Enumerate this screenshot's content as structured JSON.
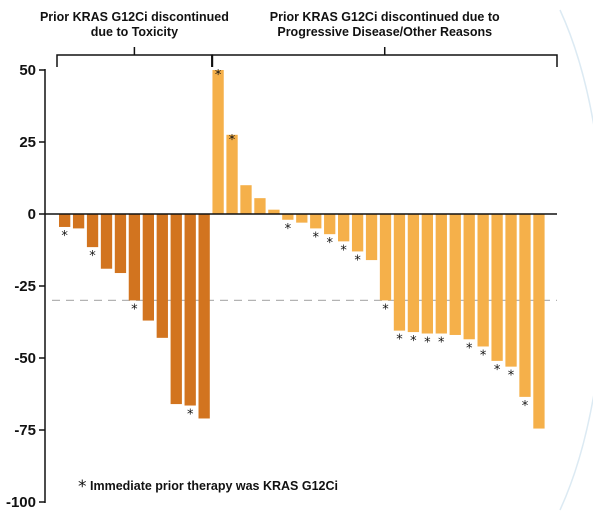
{
  "chart_data": {
    "type": "bar",
    "title": "",
    "xlabel": "",
    "ylabel": "",
    "ylim": [
      -100,
      50
    ],
    "yticks": [
      50,
      25,
      0,
      -25,
      -50,
      -75,
      -100
    ],
    "reference_line": -30,
    "groups": [
      {
        "label_lines": [
          "Prior KRAS G12Ci discontinued",
          "due to Toxicity"
        ],
        "color": "#D2741F"
      },
      {
        "label_lines": [
          "Prior KRAS G12Ci discontinued due to",
          "Progressive Disease/Other Reasons"
        ],
        "color": "#F5B04A"
      }
    ],
    "series": [
      {
        "group": 0,
        "values": [
          -4.5,
          -5,
          -11.5,
          -19,
          -20.5,
          -30,
          -37,
          -43,
          -66,
          -66.5,
          -71
        ],
        "starred": [
          true,
          false,
          true,
          false,
          false,
          true,
          false,
          false,
          false,
          true,
          false
        ]
      },
      {
        "group": 1,
        "values": [
          50,
          27.5,
          10,
          5.5,
          1.5,
          -2,
          -3,
          -5,
          -7,
          -9.5,
          -13,
          -16,
          -30,
          -40.5,
          -41,
          -41.5,
          -41.5,
          -42,
          -43.5,
          -46,
          -51,
          -53,
          -63.5,
          -74.5
        ],
        "starred": [
          true,
          true,
          false,
          false,
          false,
          true,
          false,
          true,
          true,
          true,
          true,
          false,
          true,
          true,
          true,
          true,
          true,
          false,
          true,
          true,
          true,
          true,
          true,
          false
        ]
      }
    ],
    "footnote_symbol": "*",
    "footnote": "Immediate prior therapy was KRAS G12Ci"
  }
}
